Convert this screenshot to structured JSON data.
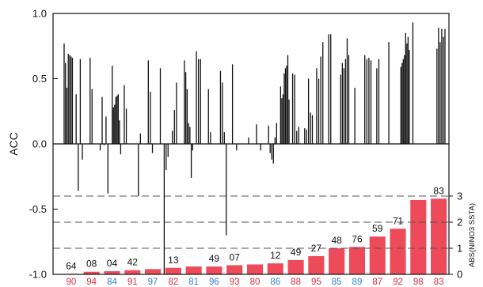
{
  "colors": {
    "bar_fill": "#ee4b5a",
    "label_red": "#dd3040",
    "label_blue": "#3a7fd0",
    "acc_bars": "#111111",
    "dashed_grid": "#555555"
  },
  "chart_data": [
    {
      "type": "bar",
      "name_hint": "acc",
      "ylabel": "ACC",
      "ylim": [
        -1.0,
        1.0
      ],
      "yticks": [
        {
          "value": 1.0,
          "label": "1.0"
        },
        {
          "value": 0.5,
          "label": "0.5"
        },
        {
          "value": 0.0,
          "label": "0.0"
        },
        {
          "value": -0.5,
          "label": "-0.5"
        },
        {
          "value": -1.0,
          "label": "-1.0"
        }
      ],
      "groups": [
        [
          0.77,
          0.62,
          0.43,
          0.69,
          0.68,
          0.67,
          0.66
        ],
        [
          0.38,
          -0.36,
          0.65,
          -0.12
        ],
        [
          0.0,
          0.66,
          0.42,
          0.0,
          0.0
        ],
        [
          -0.05,
          0.36,
          -0.01,
          0.21,
          -0.38
        ],
        [
          0.6,
          0.28,
          0.3,
          0.36,
          0.37,
          0.38,
          0.18,
          -0.08
        ],
        [
          0.45,
          0.27
        ],
        [
          0.0,
          -0.4,
          0.08
        ],
        [
          0.64,
          0.4,
          -0.07
        ],
        [
          0.58,
          0.0,
          -1.0,
          -0.2,
          -0.1
        ],
        [
          0.1,
          0.26,
          0.47
        ],
        [
          0.64,
          0.55,
          0.42,
          0.16,
          0.13,
          -0.26,
          -0.05
        ],
        [
          0.71,
          0.65,
          0.65
        ],
        [
          0.42,
          0.09
        ],
        [
          0.56,
          0.47,
          0.09,
          -0.7,
          0.0
        ],
        [
          0.61,
          0.0,
          -0.05
        ],
        [
          0.0,
          0.0,
          0.05
        ],
        [
          0.15,
          0.0,
          -0.05
        ],
        [
          0.14,
          -0.07,
          -0.12,
          -0.15,
          0.05,
          0.16
        ],
        [
          0.44,
          0.35,
          0.38,
          0.54,
          0.58,
          0.6,
          0.68,
          0.34
        ],
        [
          0.54,
          0.53,
          0.1,
          0.13
        ],
        [
          0.12,
          0.11,
          0.5,
          0.24,
          0.22
        ],
        [
          0.58,
          0.5,
          0.67,
          0.78
        ],
        [
          0.84,
          0.84
        ],
        [
          0.53,
          0.62,
          0.58,
          0.65,
          0.81,
          0.68
        ],
        [
          0.0,
          0.43
        ],
        [
          0.68,
          0.65,
          0.66,
          0.64
        ],
        [
          0.58,
          0.65
        ],
        [
          0.78
        ],
        [
          0.59,
          0.62,
          0.65,
          0.68,
          0.85,
          0.77,
          0.82,
          0.72
        ],
        [
          0.93
        ],
        [
          0.0
        ],
        [
          0.73,
          0.89,
          0.78,
          0.88,
          0.82,
          0.88
        ]
      ]
    },
    {
      "type": "bar",
      "name_hint": "nino3",
      "ylabel": "ABS(NINO3 SSTA)",
      "ylim": [
        0,
        3
      ],
      "yticks": [
        {
          "value": 0,
          "label": "0"
        },
        {
          "value": 1,
          "label": "1"
        },
        {
          "value": 2,
          "label": "2"
        },
        {
          "value": 3,
          "label": "3"
        }
      ],
      "categories": [
        "90",
        "94",
        "84",
        "91",
        "97",
        "82",
        "81",
        "96",
        "93",
        "80",
        "86",
        "88",
        "95",
        "85",
        "89",
        "87",
        "92",
        "98",
        "83"
      ],
      "category_colors": [
        "red",
        "red",
        "blue",
        "red",
        "blue",
        "red",
        "blue",
        "blue",
        "red",
        "red",
        "blue",
        "red",
        "red",
        "blue",
        "blue",
        "red",
        "red",
        "red",
        "red"
      ],
      "values": [
        0.02,
        0.1,
        0.12,
        0.16,
        0.2,
        0.25,
        0.3,
        0.3,
        0.35,
        0.38,
        0.42,
        0.55,
        0.7,
        1.0,
        1.05,
        1.45,
        1.75,
        2.85,
        2.9
      ],
      "labels": [
        "64",
        "08",
        "04",
        "42",
        "",
        "13",
        "",
        "49",
        "07",
        "",
        "12",
        "49",
        "27",
        "48",
        "76",
        "59",
        "71",
        "",
        "83"
      ]
    }
  ]
}
